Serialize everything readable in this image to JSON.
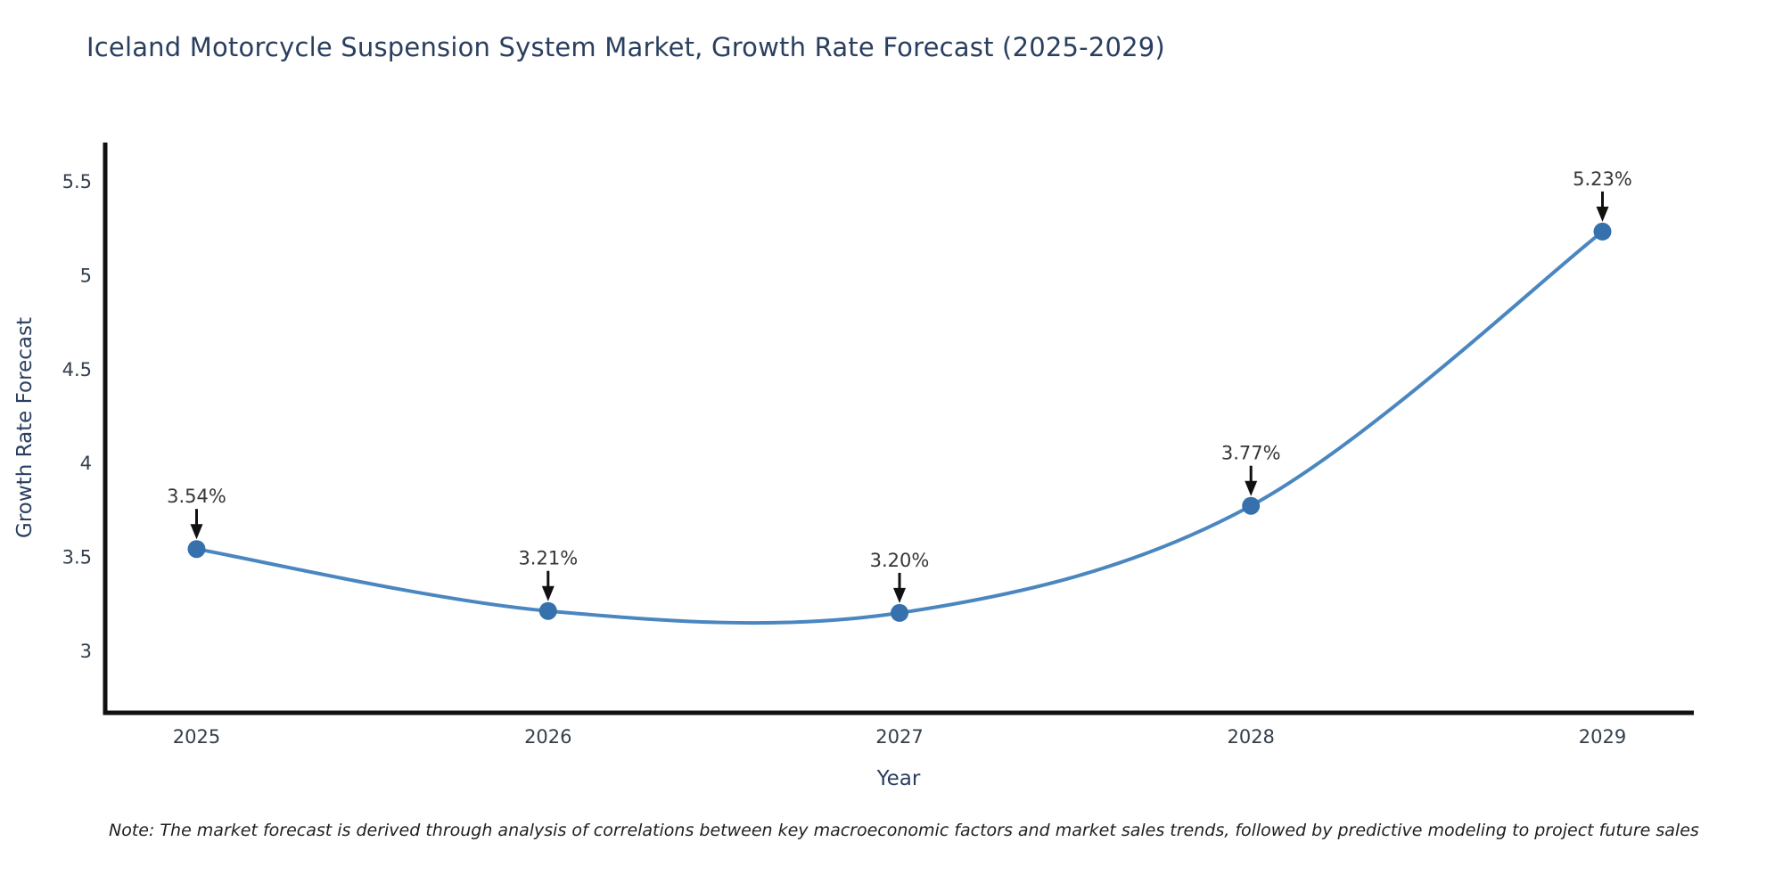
{
  "note": "Note: The market forecast is derived through analysis of correlations between key macroeconomic factors and market sales trends, followed by predictive modeling to project future sales",
  "chart_data": {
    "type": "line",
    "title": "Iceland Motorcycle Suspension System Market, Growth Rate Forecast (2025-2029)",
    "xlabel": "Year",
    "ylabel": "Growth Rate Forecast",
    "x": [
      2025,
      2026,
      2027,
      2028,
      2029
    ],
    "values": [
      3.54,
      3.21,
      3.2,
      3.77,
      5.23
    ],
    "point_labels": [
      "3.54%",
      "3.21%",
      "3.20%",
      "3.77%",
      "5.23%"
    ],
    "xticks": [
      "2025",
      "2026",
      "2027",
      "2028",
      "2029"
    ],
    "yticks": [
      3,
      3.5,
      4,
      4.5,
      5,
      5.5
    ],
    "xlim": [
      2024.74,
      2029.26
    ],
    "ylim": [
      2.668,
      5.704
    ],
    "line_shape": "spline",
    "legend": "none",
    "grid": false,
    "colors": {
      "line": "#4a86c0",
      "marker": "#3670ad",
      "axis": "#111111",
      "annotation_arrow": "#111111",
      "title_text": "#2a3f5f",
      "tick_text": "#333f4c"
    }
  }
}
